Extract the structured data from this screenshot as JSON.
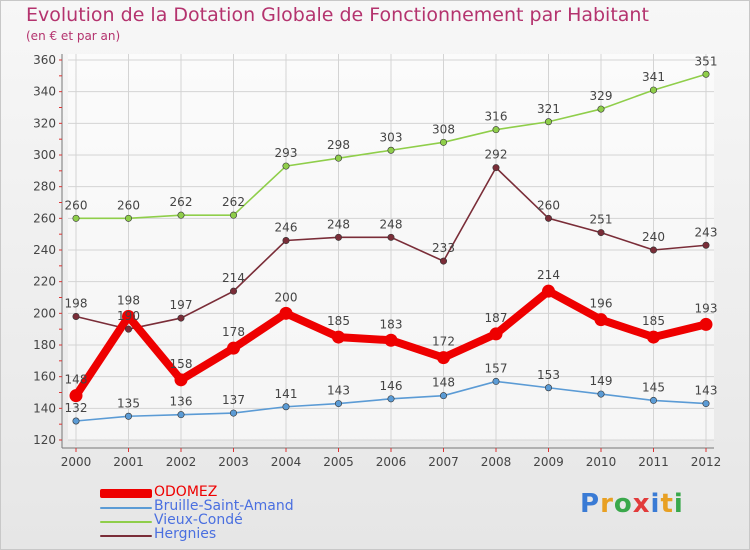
{
  "header": {
    "title": "Evolution de la Dotation Globale de Fonctionnement par Habitant",
    "subtitle": "(en € et par an)"
  },
  "logo": {
    "text": "Proxiti",
    "colors": [
      "#3a7bd5",
      "#e8a023",
      "#3aa84b",
      "#e23b3b",
      "#3a7bd5",
      "#e8a023",
      "#3aa84b"
    ]
  },
  "chart_data": {
    "type": "line",
    "x": [
      "2000",
      "2001",
      "2002",
      "2003",
      "2004",
      "2005",
      "2006",
      "2007",
      "2008",
      "2009",
      "2010",
      "2011",
      "2012"
    ],
    "ylim": [
      120,
      360
    ],
    "yticks": [
      "120",
      "140",
      "160",
      "180",
      "200",
      "220",
      "240",
      "260",
      "280",
      "300",
      "320",
      "340",
      "360"
    ],
    "grid": true,
    "legend_position": "bottom-left",
    "series": [
      {
        "name": "Vieux-Condé",
        "color": "#8fce4a",
        "emphasis": false,
        "values": [
          260,
          260,
          262,
          262,
          293,
          298,
          303,
          308,
          316,
          321,
          329,
          341,
          351
        ]
      },
      {
        "name": "Hergnies",
        "color": "#7a2d38",
        "emphasis": false,
        "values": [
          198,
          190,
          197,
          214,
          246,
          248,
          248,
          233,
          292,
          260,
          251,
          240,
          243
        ],
        "labels": [
          "198",
          "190",
          "197",
          "214",
          "246",
          "248",
          "248",
          "233",
          "292",
          "260",
          "251",
          "240",
          "243"
        ]
      },
      {
        "name": "Bruille-Saint-Amand",
        "color": "#5b9bd5",
        "emphasis": false,
        "values": [
          132,
          135,
          136,
          137,
          141,
          143,
          146,
          148,
          157,
          153,
          149,
          145,
          143
        ]
      },
      {
        "name": "ODOMEZ",
        "color": "#ee0000",
        "emphasis": true,
        "values": [
          148,
          198,
          158,
          178,
          200,
          185,
          183,
          172,
          187,
          214,
          196,
          185,
          193
        ],
        "labels": [
          "148",
          "198",
          "158",
          "178",
          "200",
          "185",
          "183",
          "172",
          "187",
          "214",
          "196",
          "185",
          "193"
        ]
      }
    ],
    "legend_order": [
      "ODOMEZ",
      "Bruille-Saint-Amand",
      "Vieux-Condé",
      "Hergnies"
    ],
    "legend_text_colors": {
      "ODOMEZ": "#ee0000",
      "Bruille-Saint-Amand": "#4a6fe0",
      "Vieux-Condé": "#4a6fe0",
      "Hergnies": "#4a6fe0"
    }
  }
}
